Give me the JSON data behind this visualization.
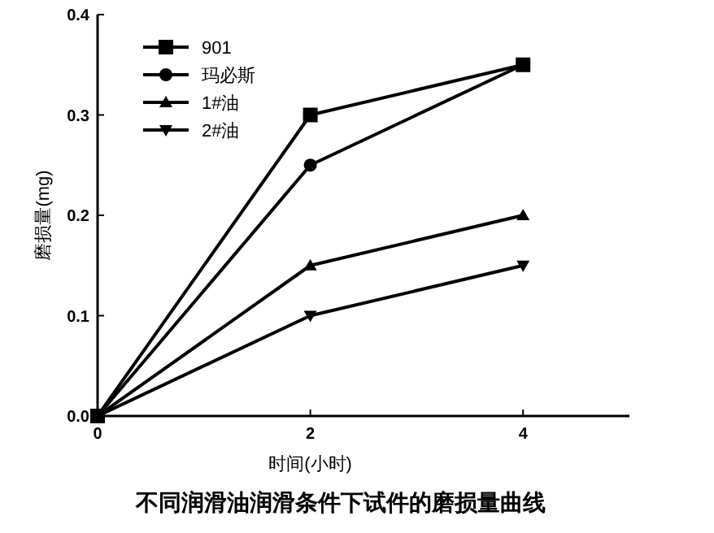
{
  "chart_data": {
    "type": "line",
    "title": "不同润滑油润滑条件下试件的磨损量曲线",
    "xlabel": "时间(小时)",
    "ylabel": "磨损量(mg)",
    "x": [
      0,
      2,
      4
    ],
    "xlim": [
      0,
      5
    ],
    "xticks": [
      0,
      2,
      4
    ],
    "ylim": [
      0,
      0.4
    ],
    "yticks": [
      {
        "value": 0,
        "label": "0.0"
      },
      {
        "value": 0.1,
        "label": "0.1"
      },
      {
        "value": 0.2,
        "label": "0.2"
      },
      {
        "value": 0.3,
        "label": "0.3"
      },
      {
        "value": 0.4,
        "label": "0.4"
      }
    ],
    "grid": false,
    "legend": "top left",
    "line_style": "solid",
    "series": [
      {
        "name": "901",
        "color": "#000000",
        "marker": "square",
        "values": [
          0,
          0.3,
          0.35
        ]
      },
      {
        "name": "玛必斯",
        "color": "#000000",
        "marker": "circle",
        "values": [
          0,
          0.25,
          0.35
        ]
      },
      {
        "name": "1#油",
        "color": "#000000",
        "marker": "triangle",
        "values": [
          0,
          0.15,
          0.2
        ]
      },
      {
        "name": "2#油",
        "color": "#000000",
        "marker": "triangle-down",
        "values": [
          0,
          0.1,
          0.15
        ]
      }
    ]
  }
}
